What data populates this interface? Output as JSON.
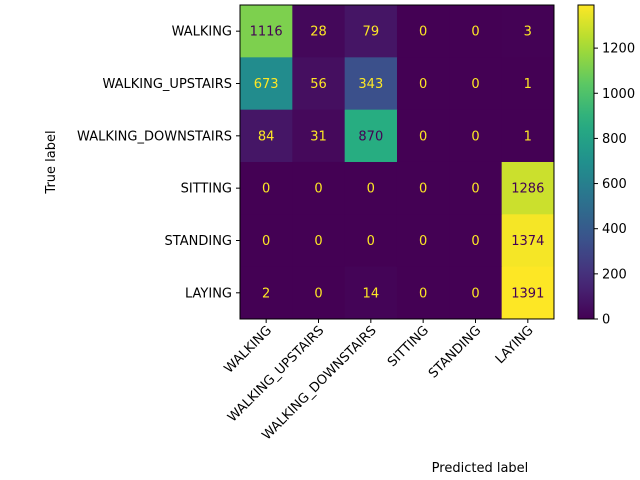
{
  "chart_data": {
    "type": "heatmap",
    "xlabel": "Predicted label",
    "ylabel": "True label",
    "x_categories": [
      "WALKING",
      "WALKING_UPSTAIRS",
      "WALKING_DOWNSTAIRS",
      "SITTING",
      "STANDING",
      "LAYING"
    ],
    "y_categories": [
      "WALKING",
      "WALKING_UPSTAIRS",
      "WALKING_DOWNSTAIRS",
      "SITTING",
      "STANDING",
      "LAYING"
    ],
    "values": [
      [
        1116,
        28,
        79,
        0,
        0,
        3
      ],
      [
        673,
        56,
        343,
        0,
        0,
        1
      ],
      [
        84,
        31,
        870,
        0,
        0,
        1
      ],
      [
        0,
        0,
        0,
        0,
        0,
        1286
      ],
      [
        0,
        0,
        0,
        0,
        0,
        1374
      ],
      [
        2,
        0,
        14,
        0,
        0,
        1391
      ]
    ],
    "colormap": "viridis",
    "value_range": [
      0,
      1391
    ],
    "colorbar": {
      "ticks": [
        "0",
        "200",
        "400",
        "600",
        "800",
        "1000",
        "1200"
      ],
      "tick_values": [
        0,
        200,
        400,
        600,
        800,
        1000,
        1200
      ]
    },
    "x_tick_rotation": "45 degrees",
    "text_colors": {
      "on_dark": "#fde725",
      "on_light": "#440154"
    }
  }
}
